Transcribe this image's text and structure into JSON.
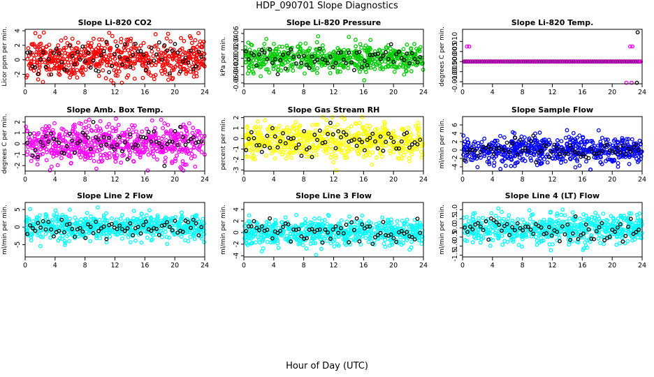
{
  "figure": {
    "title": "HDP_090701  Slope Diagnostics",
    "xlabel": "Hour of Day (UTC)"
  },
  "chart_data": [
    {
      "type": "scatter",
      "title": "Slope Li-820 CO2",
      "ylabel": "Licor ppm per min.",
      "color": "#ff0000",
      "xlim": [
        0,
        24
      ],
      "ylim": [
        -3.3,
        4.2
      ],
      "yticks": [
        -2,
        0,
        2,
        4
      ],
      "ytick_labels": [
        "-2",
        "0",
        "2",
        "4"
      ],
      "xticks": [
        0,
        4,
        8,
        12,
        16,
        20,
        24
      ],
      "spread": 1.3,
      "center": 0.2,
      "n": 600
    },
    {
      "type": "scatter",
      "title": "Slope Li-820 Pressure",
      "ylabel": "kPa per min.",
      "color": "#00cc00",
      "xlim": [
        0,
        24
      ],
      "ylim": [
        -0.062,
        0.07
      ],
      "yticks": [
        -0.06,
        -0.04,
        -0.02,
        0.0,
        0.02,
        0.04,
        0.06
      ],
      "ytick_labels": [
        "-0.06",
        "-0.04",
        "-0.02",
        "0.00",
        "0.02",
        "0.04",
        "0.06"
      ],
      "xticks": [
        0,
        4,
        8,
        12,
        16,
        20,
        24
      ],
      "spread": 0.016,
      "center": 0.0,
      "n": 600
    },
    {
      "type": "scatter",
      "title": "Slope Li-820 Temp.",
      "ylabel": "degrees C per min.",
      "color": "#ff00ff",
      "xlim": [
        0,
        24
      ],
      "ylim": [
        -0.011,
        0.016
      ],
      "yticks": [
        -0.01,
        -0.005,
        0.0,
        0.005,
        0.01
      ],
      "ytick_labels": [
        "-0.010",
        "-0.005",
        "0.000",
        "0.005",
        "0.010"
      ],
      "xticks": [
        0,
        4,
        8,
        12,
        16,
        20,
        24
      ],
      "mode": "flat",
      "n": 300
    },
    {
      "type": "scatter",
      "title": "Slope Amb. Box Temp.",
      "ylabel": "degrees C per min.",
      "color": "#ff00ff",
      "xlim": [
        0,
        24
      ],
      "ylim": [
        -2.5,
        2.5
      ],
      "yticks": [
        -2,
        -1,
        0,
        1,
        2
      ],
      "ytick_labels": [
        "-2",
        "-1",
        "0",
        "1",
        "2"
      ],
      "xticks": [
        0,
        4,
        8,
        12,
        16,
        20,
        24
      ],
      "spread": 0.9,
      "center": 0.1,
      "n": 600
    },
    {
      "type": "scatter",
      "title": "Slope Gas Stream RH",
      "ylabel": "percent per min.",
      "color": "#ffff00",
      "xlim": [
        0,
        24
      ],
      "ylim": [
        -3.1,
        2.1
      ],
      "yticks": [
        -3,
        -2,
        -1,
        0,
        1,
        2
      ],
      "ytick_labels": [
        "-3",
        "-2",
        "-1",
        "0",
        "1",
        "2"
      ],
      "xticks": [
        0,
        4,
        8,
        12,
        16,
        20,
        24
      ],
      "spread": 0.9,
      "center": -0.2,
      "n": 600
    },
    {
      "type": "scatter",
      "title": "Slope Sample Flow",
      "ylabel": "ml/min per min.",
      "color": "#0000ff",
      "xlim": [
        0,
        24
      ],
      "ylim": [
        -5,
        8
      ],
      "yticks": [
        -4,
        -2,
        0,
        2,
        4,
        6
      ],
      "ytick_labels": [
        "-4",
        "-2",
        "0",
        "2",
        "4",
        "6"
      ],
      "xticks": [
        0,
        4,
        8,
        12,
        16,
        20,
        24
      ],
      "spread": 1.6,
      "center": 0.0,
      "n": 600
    },
    {
      "type": "scatter",
      "title": "Slope Line 2 Flow",
      "ylabel": "ml/min per min.",
      "color": "#00ffff",
      "xlim": [
        0,
        24
      ],
      "ylim": [
        -8.5,
        7
      ],
      "yticks": [
        -5,
        0,
        5
      ],
      "ytick_labels": [
        "-5",
        "0",
        "5"
      ],
      "xticks": [
        0,
        4,
        8,
        12,
        16,
        20,
        24
      ],
      "spread": 1.8,
      "center": 0.0,
      "n": 600
    },
    {
      "type": "scatter",
      "title": "Slope Line 3 Flow",
      "ylabel": "ml/min per min.",
      "color": "#00ffff",
      "xlim": [
        0,
        24
      ],
      "ylim": [
        -4.2,
        5.2
      ],
      "yticks": [
        -4,
        -2,
        0,
        2,
        4
      ],
      "ytick_labels": [
        "-4",
        "-2",
        "0",
        "2",
        "4"
      ],
      "xticks": [
        0,
        4,
        8,
        12,
        16,
        20,
        24
      ],
      "spread": 1.1,
      "center": 0.0,
      "n": 600
    },
    {
      "type": "scatter",
      "title": "Slope Line 4 (LT) Flow",
      "ylabel": "ml/min per min.",
      "color": "#00ffff",
      "xlim": [
        0,
        24
      ],
      "ylim": [
        -1.6,
        1.4
      ],
      "yticks": [
        -1.5,
        -1.0,
        -0.5,
        0.0,
        0.5,
        1.0
      ],
      "ytick_labels": [
        "-1.5",
        "-1.0",
        "-0.5",
        "0.0",
        "0.5",
        "1.0"
      ],
      "xticks": [
        0,
        4,
        8,
        12,
        16,
        20,
        24
      ],
      "spread": 0.4,
      "center": -0.05,
      "n": 600
    }
  ]
}
